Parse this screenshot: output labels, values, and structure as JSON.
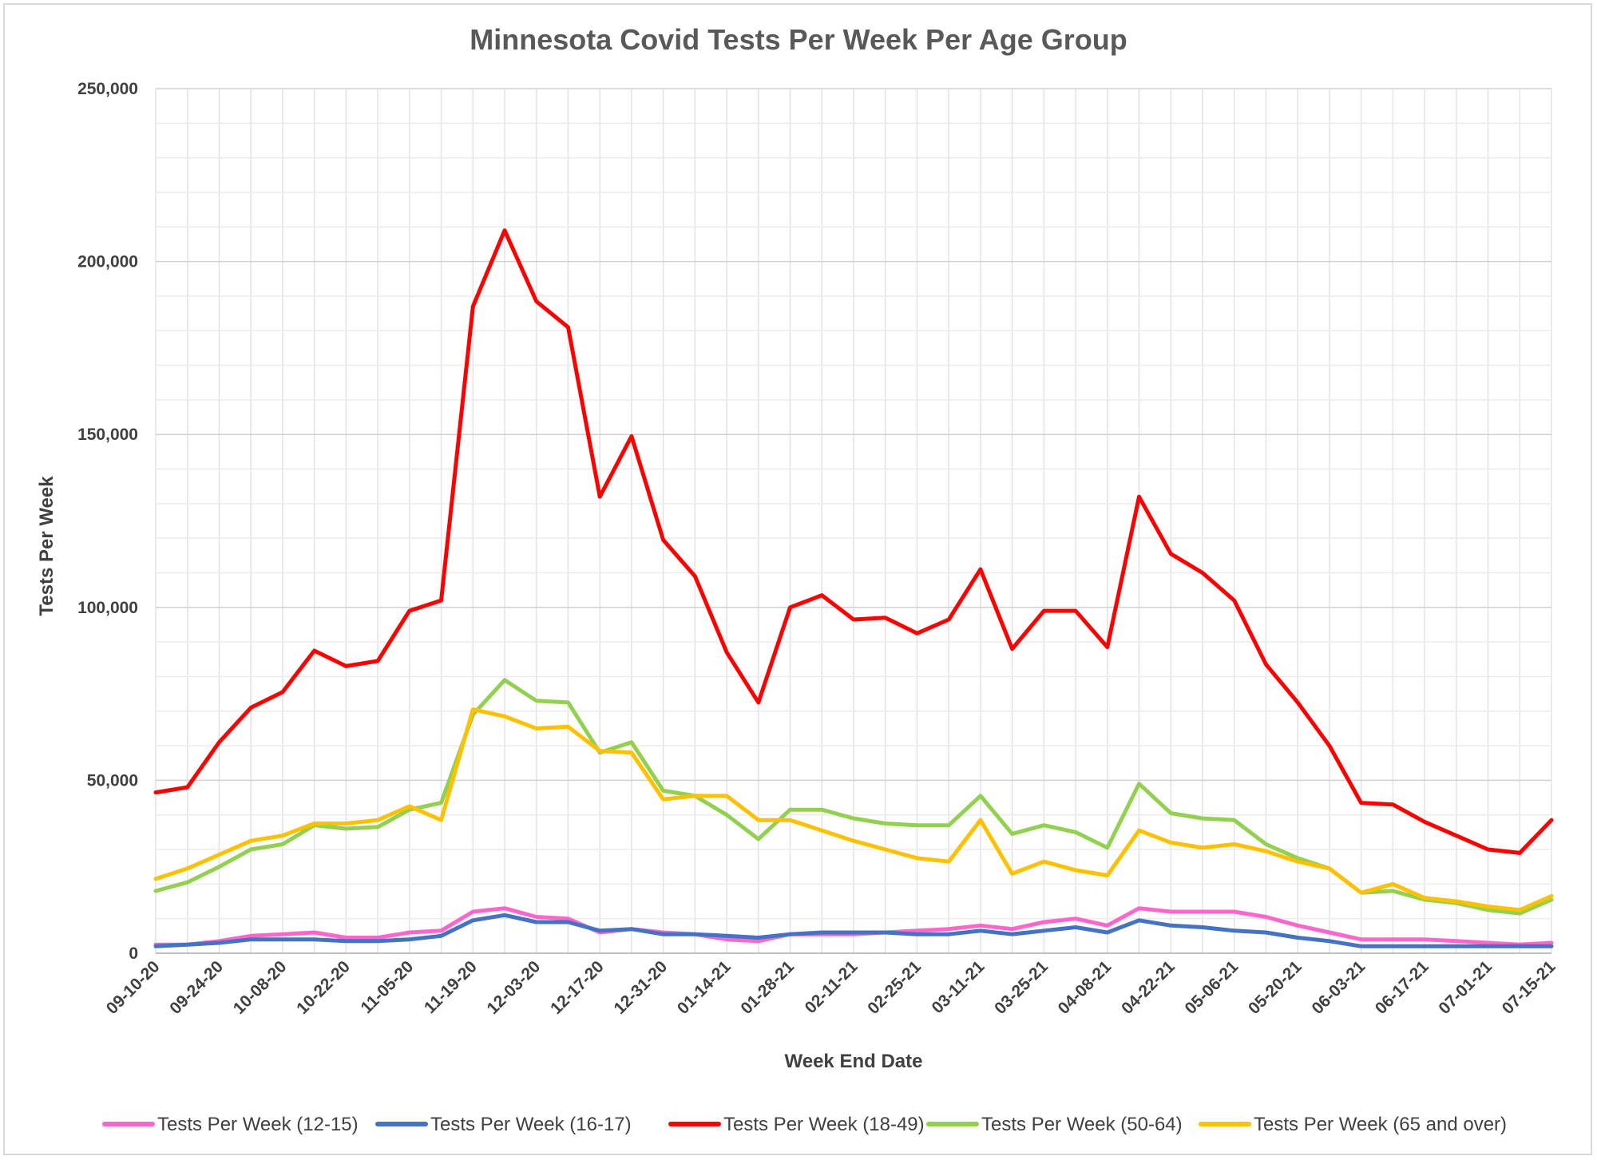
{
  "chart_data": {
    "type": "line",
    "title": "Minnesota Covid Tests Per Week Per Age Group",
    "xlabel": "Week End Date",
    "ylabel": "Tests Per Week",
    "ylim": [
      0,
      250000
    ],
    "yticks": [
      "0",
      "50,000",
      "100,000",
      "150,000",
      "200,000",
      "250,000"
    ],
    "ytick_values": [
      0,
      50000,
      100000,
      150000,
      200000,
      250000
    ],
    "grid": true,
    "legend_position": "bottom",
    "x": [
      "09-10-20",
      "09-17-20",
      "09-24-20",
      "10-01-20",
      "10-08-20",
      "10-15-20",
      "10-22-20",
      "10-29-20",
      "11-05-20",
      "11-12-20",
      "11-19-20",
      "11-26-20",
      "12-03-20",
      "12-10-20",
      "12-17-20",
      "12-24-20",
      "12-31-20",
      "01-07-21",
      "01-14-21",
      "01-21-21",
      "01-28-21",
      "02-04-21",
      "02-11-21",
      "02-18-21",
      "02-25-21",
      "03-04-21",
      "03-11-21",
      "03-18-21",
      "03-25-21",
      "04-01-21",
      "04-08-21",
      "04-15-21",
      "04-22-21",
      "04-29-21",
      "05-06-21",
      "05-13-21",
      "05-20-21",
      "05-27-21",
      "06-03-21",
      "06-10-21",
      "06-17-21",
      "06-24-21",
      "07-01-21",
      "07-08-21",
      "07-15-21"
    ],
    "xtick_labels": [
      "09-10-20",
      "09-24-20",
      "10-08-20",
      "10-22-20",
      "11-05-20",
      "11-19-20",
      "12-03-20",
      "12-17-20",
      "12-31-20",
      "01-14-21",
      "01-28-21",
      "02-11-21",
      "02-25-21",
      "03-11-21",
      "03-25-21",
      "04-08-21",
      "04-22-21",
      "05-06-21",
      "05-20-21",
      "06-03-21",
      "06-17-21",
      "07-01-21",
      "07-15-21"
    ],
    "series": [
      {
        "name": "Tests Per Week (12-15)",
        "color": "#ff66cc",
        "values": [
          2500,
          2500,
          3500,
          5000,
          5500,
          6000,
          4500,
          4500,
          6000,
          6500,
          12000,
          13000,
          10500,
          10000,
          6000,
          7000,
          6000,
          5500,
          4000,
          3500,
          5500,
          5500,
          5500,
          6000,
          6500,
          7000,
          8000,
          7000,
          9000,
          10000,
          8000,
          13000,
          12000,
          12000,
          12000,
          10500,
          8000,
          6000,
          4000,
          4000,
          4000,
          3500,
          3000,
          2500,
          3000
        ]
      },
      {
        "name": "Tests Per Week (16-17)",
        "color": "#4472c4",
        "values": [
          2000,
          2500,
          3000,
          4000,
          4000,
          4000,
          3500,
          3500,
          4000,
          5000,
          9500,
          11000,
          9000,
          9000,
          6500,
          7000,
          5500,
          5500,
          5000,
          4500,
          5500,
          6000,
          6000,
          6000,
          5500,
          5500,
          6500,
          5500,
          6500,
          7500,
          6000,
          9500,
          8000,
          7500,
          6500,
          6000,
          4500,
          3500,
          2000,
          2000,
          2000,
          2000,
          2000,
          2000,
          2000
        ]
      },
      {
        "name": "Tests Per Week (18-49)",
        "color": "#ff0000",
        "values": [
          46500,
          48000,
          61000,
          71000,
          75500,
          87500,
          83000,
          84500,
          99000,
          102000,
          187000,
          209000,
          188500,
          181000,
          132000,
          149500,
          119500,
          109000,
          87000,
          72500,
          100000,
          103500,
          96500,
          97000,
          92500,
          96500,
          111000,
          88000,
          99000,
          99000,
          88500,
          132000,
          115500,
          110000,
          102000,
          83500,
          72500,
          60000,
          43500,
          43000,
          38000,
          34000,
          30000,
          29000,
          38500
        ]
      },
      {
        "name": "Tests Per Week (50-64)",
        "color": "#92d050",
        "values": [
          18000,
          20500,
          25000,
          30000,
          31500,
          37000,
          36000,
          36500,
          41500,
          43500,
          69000,
          79000,
          73000,
          72500,
          58000,
          61000,
          47000,
          45500,
          40000,
          33000,
          41500,
          41500,
          39000,
          37500,
          37000,
          37000,
          45500,
          34500,
          37000,
          35000,
          30500,
          49000,
          40500,
          39000,
          38500,
          31500,
          27500,
          24500,
          17500,
          18000,
          15500,
          14500,
          12500,
          11500,
          15500
        ]
      },
      {
        "name": "Tests Per Week (65 and over)",
        "color": "#ffc000",
        "values": [
          21500,
          24500,
          28500,
          32500,
          34000,
          37500,
          37500,
          38500,
          42500,
          38500,
          70500,
          68500,
          65000,
          65500,
          58500,
          58000,
          44500,
          45500,
          45500,
          38500,
          38500,
          35500,
          32500,
          30000,
          27500,
          26500,
          38500,
          23000,
          26500,
          24000,
          22500,
          35500,
          32000,
          30500,
          31500,
          29500,
          26500,
          24500,
          17500,
          20000,
          16000,
          15000,
          13500,
          12500,
          16500
        ]
      }
    ]
  }
}
